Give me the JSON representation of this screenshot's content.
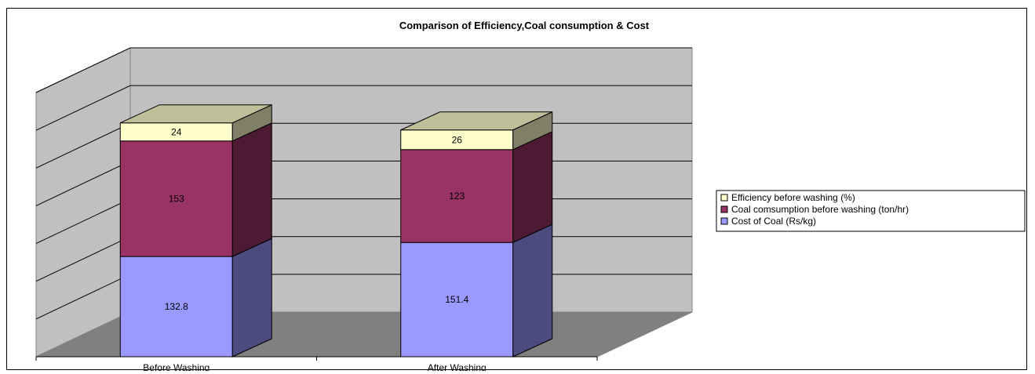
{
  "chart_data": {
    "type": "bar",
    "stacked": true,
    "three_d": true,
    "title": "Comparison of Efficiency,Coal consumption & Cost",
    "categories": [
      "Before Washing",
      "After Washing"
    ],
    "series": [
      {
        "name": "Cost of Coal (Rs/kg)",
        "values": [
          132.8,
          151.4
        ],
        "color": "#9999ff",
        "side_color": "#4b4b80"
      },
      {
        "name": "Coal comsumption before washing (ton/hr)",
        "values": [
          153,
          123
        ],
        "color": "#993366",
        "side_color": "#4c1a33"
      },
      {
        "name": "Efficiency before washing (%)",
        "values": [
          24,
          26
        ],
        "color": "#ffffcc",
        "side_color": "#808066"
      }
    ],
    "value_labels": [
      [
        "132.8",
        "153",
        "24"
      ],
      [
        "151.4",
        "123",
        "26"
      ]
    ],
    "ylim": [
      0,
      350
    ],
    "y_major_step": 50,
    "grid": true,
    "legend_position": "right",
    "colors": {
      "back_wall": "#c0c0c0",
      "floor": "#808080",
      "gridline": "#000000"
    }
  }
}
